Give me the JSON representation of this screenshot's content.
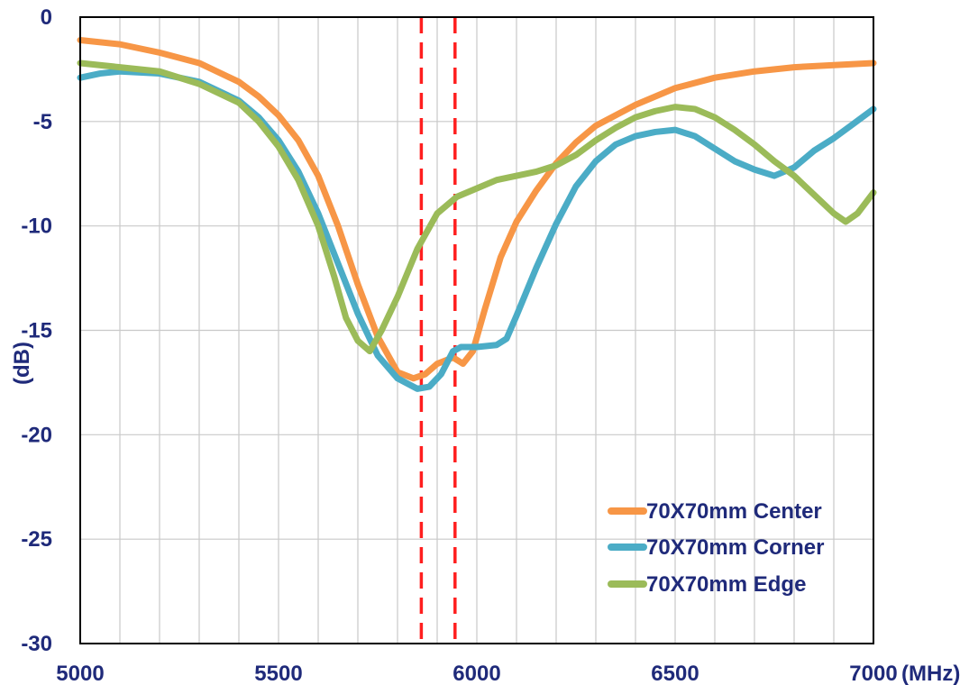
{
  "chart_data": {
    "type": "line",
    "title": "",
    "xlabel": "",
    "ylabel": "(dB)",
    "x_unit": "(MHz)",
    "xlim": [
      5000,
      7000
    ],
    "ylim": [
      -30,
      0
    ],
    "x_ticks": [
      5000,
      5500,
      6000,
      6500,
      7000
    ],
    "x_tick_labels": [
      "5000",
      "5500",
      "6000",
      "6500",
      "7000"
    ],
    "y_ticks": [
      0,
      -5,
      -10,
      -15,
      -20,
      -25,
      -30
    ],
    "y_tick_labels": [
      "0",
      "-5",
      "-10",
      "-15",
      "-20",
      "-25",
      "-30"
    ],
    "grid": true,
    "grid_x_step": 100,
    "legend_position": "bottom-right",
    "colors": {
      "grid": "#c9c9c9",
      "axes": "#000000",
      "marker_line": "#ff1f1f",
      "text": "#1f2a7a",
      "ylabel": "#2e75b6"
    },
    "markers": [
      {
        "x": 5860,
        "color": "#ff1f1f",
        "style": "dashed"
      },
      {
        "x": 5945,
        "color": "#ff1f1f",
        "style": "dashed"
      }
    ],
    "series": [
      {
        "name": "70X70mm Center",
        "color": "#f79646",
        "points": [
          [
            5000,
            -1.1
          ],
          [
            5100,
            -1.3
          ],
          [
            5200,
            -1.7
          ],
          [
            5300,
            -2.2
          ],
          [
            5400,
            -3.1
          ],
          [
            5450,
            -3.8
          ],
          [
            5500,
            -4.7
          ],
          [
            5550,
            -5.9
          ],
          [
            5600,
            -7.6
          ],
          [
            5650,
            -10.0
          ],
          [
            5700,
            -12.8
          ],
          [
            5750,
            -15.3
          ],
          [
            5800,
            -17.0
          ],
          [
            5840,
            -17.3
          ],
          [
            5870,
            -17.1
          ],
          [
            5900,
            -16.6
          ],
          [
            5940,
            -16.3
          ],
          [
            5965,
            -16.6
          ],
          [
            5990,
            -16.0
          ],
          [
            6020,
            -14.0
          ],
          [
            6060,
            -11.5
          ],
          [
            6100,
            -9.8
          ],
          [
            6150,
            -8.3
          ],
          [
            6200,
            -7.0
          ],
          [
            6250,
            -6.0
          ],
          [
            6300,
            -5.2
          ],
          [
            6400,
            -4.2
          ],
          [
            6500,
            -3.4
          ],
          [
            6600,
            -2.9
          ],
          [
            6700,
            -2.6
          ],
          [
            6800,
            -2.4
          ],
          [
            6900,
            -2.3
          ],
          [
            7000,
            -2.2
          ]
        ]
      },
      {
        "name": "70X70mm Corner",
        "color": "#4bacc6",
        "points": [
          [
            5000,
            -2.9
          ],
          [
            5050,
            -2.7
          ],
          [
            5100,
            -2.6
          ],
          [
            5200,
            -2.7
          ],
          [
            5300,
            -3.1
          ],
          [
            5400,
            -4.0
          ],
          [
            5450,
            -4.8
          ],
          [
            5500,
            -5.9
          ],
          [
            5550,
            -7.4
          ],
          [
            5600,
            -9.4
          ],
          [
            5650,
            -11.8
          ],
          [
            5700,
            -14.2
          ],
          [
            5750,
            -16.2
          ],
          [
            5800,
            -17.3
          ],
          [
            5850,
            -17.8
          ],
          [
            5880,
            -17.7
          ],
          [
            5910,
            -17.1
          ],
          [
            5940,
            -16.0
          ],
          [
            5960,
            -15.8
          ],
          [
            6000,
            -15.8
          ],
          [
            6050,
            -15.7
          ],
          [
            6075,
            -15.4
          ],
          [
            6100,
            -14.3
          ],
          [
            6150,
            -12.0
          ],
          [
            6200,
            -9.9
          ],
          [
            6250,
            -8.1
          ],
          [
            6300,
            -6.9
          ],
          [
            6350,
            -6.1
          ],
          [
            6400,
            -5.7
          ],
          [
            6450,
            -5.5
          ],
          [
            6500,
            -5.4
          ],
          [
            6550,
            -5.7
          ],
          [
            6600,
            -6.3
          ],
          [
            6650,
            -6.9
          ],
          [
            6700,
            -7.3
          ],
          [
            6750,
            -7.6
          ],
          [
            6800,
            -7.2
          ],
          [
            6850,
            -6.4
          ],
          [
            6900,
            -5.8
          ],
          [
            6950,
            -5.1
          ],
          [
            7000,
            -4.4
          ]
        ]
      },
      {
        "name": "70X70mm Edge",
        "color": "#9bbb59",
        "points": [
          [
            5000,
            -2.2
          ],
          [
            5100,
            -2.4
          ],
          [
            5200,
            -2.6
          ],
          [
            5300,
            -3.2
          ],
          [
            5400,
            -4.1
          ],
          [
            5450,
            -5.0
          ],
          [
            5500,
            -6.2
          ],
          [
            5550,
            -7.8
          ],
          [
            5600,
            -10.0
          ],
          [
            5640,
            -12.4
          ],
          [
            5670,
            -14.4
          ],
          [
            5700,
            -15.5
          ],
          [
            5730,
            -16.0
          ],
          [
            5760,
            -15.0
          ],
          [
            5800,
            -13.4
          ],
          [
            5850,
            -11.1
          ],
          [
            5900,
            -9.4
          ],
          [
            5950,
            -8.6
          ],
          [
            6000,
            -8.2
          ],
          [
            6050,
            -7.8
          ],
          [
            6100,
            -7.6
          ],
          [
            6150,
            -7.4
          ],
          [
            6200,
            -7.1
          ],
          [
            6250,
            -6.6
          ],
          [
            6300,
            -5.9
          ],
          [
            6350,
            -5.3
          ],
          [
            6400,
            -4.8
          ],
          [
            6450,
            -4.5
          ],
          [
            6500,
            -4.3
          ],
          [
            6550,
            -4.4
          ],
          [
            6600,
            -4.8
          ],
          [
            6650,
            -5.4
          ],
          [
            6700,
            -6.1
          ],
          [
            6750,
            -6.9
          ],
          [
            6800,
            -7.6
          ],
          [
            6850,
            -8.5
          ],
          [
            6900,
            -9.4
          ],
          [
            6930,
            -9.8
          ],
          [
            6960,
            -9.4
          ],
          [
            7000,
            -8.4
          ]
        ]
      }
    ]
  }
}
